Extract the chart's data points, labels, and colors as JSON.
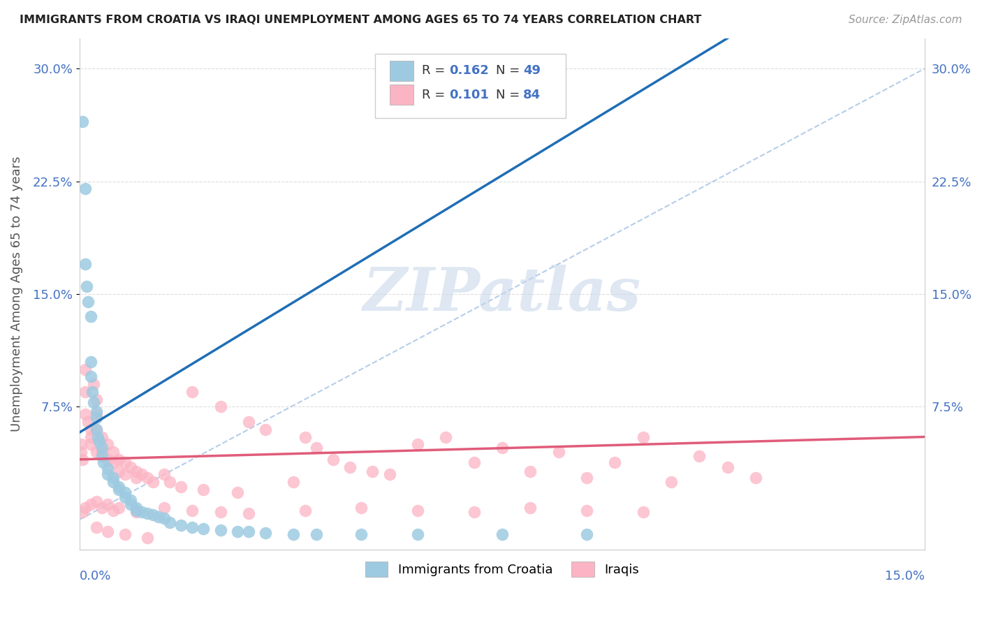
{
  "title": "IMMIGRANTS FROM CROATIA VS IRAQI UNEMPLOYMENT AMONG AGES 65 TO 74 YEARS CORRELATION CHART",
  "source": "Source: ZipAtlas.com",
  "ylabel": "Unemployment Among Ages 65 to 74 years",
  "ytick_labels": [
    "7.5%",
    "15.0%",
    "22.5%",
    "30.0%"
  ],
  "ytick_values": [
    0.075,
    0.15,
    0.225,
    0.3
  ],
  "xlim": [
    0.0,
    0.15
  ],
  "ylim": [
    -0.02,
    0.32
  ],
  "color_croatia": "#9ecae1",
  "color_iraq": "#fbb4c3",
  "color_trend_croatia": "#1f6eb5",
  "color_trend_iraq": "#e05c7a",
  "color_ref_line": "#aec8e8",
  "legend_text_color": "#1f6eb5",
  "legend_r_color": "#333333",
  "watermark_color": "#c8d8ea",
  "r_croatia": "0.162",
  "n_croatia": "49",
  "r_iraq": "0.101",
  "n_iraq": "84",
  "legend_label1": "Immigrants from Croatia",
  "legend_label2": "Iraqis",
  "croatia_x": [
    0.0005,
    0.001,
    0.001,
    0.0012,
    0.0015,
    0.002,
    0.002,
    0.002,
    0.0022,
    0.0025,
    0.003,
    0.003,
    0.003,
    0.0032,
    0.0035,
    0.004,
    0.004,
    0.0042,
    0.005,
    0.005,
    0.006,
    0.006,
    0.007,
    0.007,
    0.008,
    0.008,
    0.009,
    0.009,
    0.01,
    0.01,
    0.011,
    0.012,
    0.013,
    0.014,
    0.015,
    0.016,
    0.018,
    0.02,
    0.022,
    0.025,
    0.028,
    0.03,
    0.033,
    0.038,
    0.042,
    0.05,
    0.06,
    0.075,
    0.09
  ],
  "croatia_y": [
    0.265,
    0.22,
    0.17,
    0.155,
    0.145,
    0.135,
    0.105,
    0.095,
    0.085,
    0.078,
    0.072,
    0.068,
    0.06,
    0.055,
    0.052,
    0.048,
    0.042,
    0.038,
    0.034,
    0.03,
    0.028,
    0.025,
    0.022,
    0.02,
    0.018,
    0.015,
    0.013,
    0.01,
    0.008,
    0.006,
    0.005,
    0.004,
    0.003,
    0.002,
    0.001,
    -0.002,
    -0.004,
    -0.005,
    -0.006,
    -0.007,
    -0.008,
    -0.008,
    -0.009,
    -0.01,
    -0.01,
    -0.01,
    -0.01,
    -0.01,
    -0.01
  ],
  "iraq_x": [
    0.0002,
    0.0003,
    0.0005,
    0.001,
    0.001,
    0.001,
    0.0015,
    0.002,
    0.002,
    0.002,
    0.0025,
    0.003,
    0.003,
    0.003,
    0.003,
    0.004,
    0.004,
    0.005,
    0.005,
    0.006,
    0.006,
    0.007,
    0.007,
    0.008,
    0.008,
    0.009,
    0.01,
    0.01,
    0.011,
    0.012,
    0.013,
    0.015,
    0.016,
    0.018,
    0.02,
    0.022,
    0.025,
    0.028,
    0.03,
    0.033,
    0.038,
    0.04,
    0.042,
    0.045,
    0.048,
    0.052,
    0.055,
    0.06,
    0.065,
    0.07,
    0.075,
    0.08,
    0.085,
    0.09,
    0.095,
    0.1,
    0.105,
    0.11,
    0.115,
    0.12,
    0.0005,
    0.001,
    0.002,
    0.003,
    0.004,
    0.005,
    0.006,
    0.007,
    0.01,
    0.015,
    0.02,
    0.025,
    0.03,
    0.04,
    0.05,
    0.06,
    0.07,
    0.08,
    0.09,
    0.1,
    0.003,
    0.005,
    0.008,
    0.012
  ],
  "iraq_y": [
    0.05,
    0.045,
    0.04,
    0.1,
    0.085,
    0.07,
    0.065,
    0.06,
    0.055,
    0.05,
    0.09,
    0.08,
    0.07,
    0.06,
    0.045,
    0.055,
    0.045,
    0.05,
    0.04,
    0.045,
    0.038,
    0.04,
    0.032,
    0.038,
    0.03,
    0.035,
    0.032,
    0.028,
    0.03,
    0.028,
    0.025,
    0.03,
    0.025,
    0.022,
    0.085,
    0.02,
    0.075,
    0.018,
    0.065,
    0.06,
    0.025,
    0.055,
    0.048,
    0.04,
    0.035,
    0.032,
    0.03,
    0.05,
    0.055,
    0.038,
    0.048,
    0.032,
    0.045,
    0.028,
    0.038,
    0.055,
    0.025,
    0.042,
    0.035,
    0.028,
    0.005,
    0.008,
    0.01,
    0.012,
    0.008,
    0.01,
    0.006,
    0.008,
    0.005,
    0.008,
    0.006,
    0.005,
    0.004,
    0.006,
    0.008,
    0.006,
    0.005,
    0.008,
    0.006,
    0.005,
    -0.005,
    -0.008,
    -0.01,
    -0.012
  ]
}
